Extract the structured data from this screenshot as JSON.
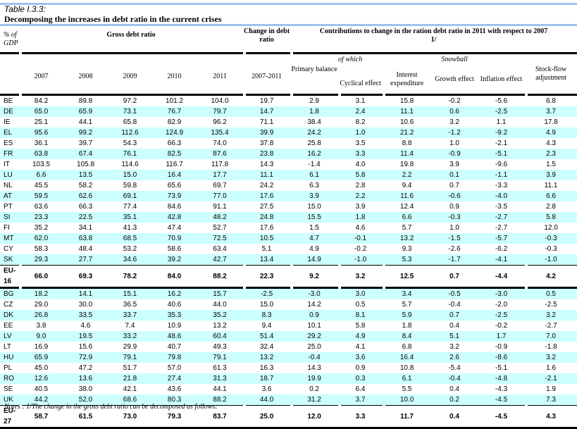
{
  "header": {
    "table_label": "Table I.3.3:",
    "title": "Decomposing the increases in debt ratio in the current crises",
    "unit": "% of GDP",
    "gross_debt_ratio": "Gross debt ratio",
    "change_in_debt_ratio": "Change in debt ratio",
    "contributions": "Contributions to change in the ration debt ratio in 2011 with respect to 2007 1/",
    "of_which": "of which",
    "snowball": "Snowball",
    "columns": [
      "2007",
      "2008",
      "2009",
      "2010",
      "2011",
      "2007-2011",
      "Primary balance",
      "Cyclical effect",
      "Interest expenditure",
      "Growth effect",
      "Inflation effect",
      "Stock-flow adjustment"
    ]
  },
  "colors": {
    "row_stripe": "#ccffff",
    "rule": "#9cc3f0"
  },
  "rows": [
    {
      "code": "BE",
      "v": [
        "84.2",
        "89.8",
        "97.2",
        "101.2",
        "104.0",
        "19.7",
        "2.9",
        "3.1",
        "15.8",
        "-0.2",
        "-5.6",
        "6.8"
      ]
    },
    {
      "code": "DE",
      "v": [
        "65.0",
        "65.9",
        "73.1",
        "76.7",
        "79.7",
        "14.7",
        "1.8",
        "2.4",
        "11.1",
        "0.6",
        "-2.5",
        "3.7"
      ]
    },
    {
      "code": "IE",
      "v": [
        "25.1",
        "44.1",
        "65.8",
        "82.9",
        "96.2",
        "71.1",
        "38.4",
        "8.2",
        "10.6",
        "3.2",
        "1.1",
        "17.8"
      ]
    },
    {
      "code": "EL",
      "v": [
        "95.6",
        "99.2",
        "112.6",
        "124.9",
        "135.4",
        "39.9",
        "24.2",
        "1.0",
        "21.2",
        "-1.2",
        "-9.2",
        "4.9"
      ]
    },
    {
      "code": "ES",
      "v": [
        "36.1",
        "39.7",
        "54.3",
        "66.3",
        "74.0",
        "37.8",
        "25.8",
        "3.5",
        "8.8",
        "1.0",
        "-2.1",
        "4.3"
      ]
    },
    {
      "code": "FR",
      "v": [
        "63.8",
        "67.4",
        "76.1",
        "82.5",
        "87.6",
        "23.8",
        "16.2",
        "3.3",
        "11.4",
        "-0.9",
        "-5.1",
        "2.3"
      ]
    },
    {
      "code": "IT",
      "v": [
        "103.5",
        "105.8",
        "114.6",
        "116.7",
        "117.8",
        "14.3",
        "-1.4",
        "4.0",
        "19.8",
        "3.9",
        "-9.6",
        "1.5"
      ]
    },
    {
      "code": "LU",
      "v": [
        "6.6",
        "13.5",
        "15.0",
        "16.4",
        "17.7",
        "11.1",
        "6.1",
        "5.8",
        "2.2",
        "0.1",
        "-1.1",
        "3.9"
      ]
    },
    {
      "code": "NL",
      "v": [
        "45.5",
        "58.2",
        "59.8",
        "65.6",
        "69.7",
        "24.2",
        "6.3",
        "2.8",
        "9.4",
        "0.7",
        "-3.3",
        "11.1"
      ]
    },
    {
      "code": "AT",
      "v": [
        "59.5",
        "62.6",
        "69.1",
        "73.9",
        "77.0",
        "17.6",
        "3.9",
        "2.2",
        "11.6",
        "-0.6",
        "-4.0",
        "6.6"
      ]
    },
    {
      "code": "PT",
      "v": [
        "63.6",
        "66.3",
        "77.4",
        "84.6",
        "91.1",
        "27.5",
        "15.0",
        "3.9",
        "12.4",
        "0.9",
        "-3.5",
        "2.8"
      ]
    },
    {
      "code": "SI",
      "v": [
        "23.3",
        "22.5",
        "35.1",
        "42.8",
        "48.2",
        "24.8",
        "15.5",
        "1.8",
        "6.6",
        "-0.3",
        "-2.7",
        "5.8"
      ]
    },
    {
      "code": "FI",
      "v": [
        "35.2",
        "34.1",
        "41.3",
        "47.4",
        "52.7",
        "17.6",
        "1.5",
        "4.6",
        "5.7",
        "1.0",
        "-2.7",
        "12.0"
      ]
    },
    {
      "code": "MT",
      "v": [
        "62.0",
        "63.8",
        "68.5",
        "70.9",
        "72.5",
        "10.5",
        "4.7",
        "-0.1",
        "13.2",
        "-1.5",
        "-5.7",
        "-0.3"
      ]
    },
    {
      "code": "CY",
      "v": [
        "58.3",
        "48.4",
        "53.2",
        "58.6",
        "63.4",
        "5.1",
        "4.9",
        "-0.2",
        "9.3",
        "-2.6",
        "-6.2",
        "-0.3"
      ]
    },
    {
      "code": "SK",
      "v": [
        "29.3",
        "27.7",
        "34.6",
        "39.2",
        "42.7",
        "13.4",
        "14.9",
        "-1.0",
        "5.3",
        "-1.7",
        "-4.1",
        "-1.0"
      ]
    },
    {
      "code": "EU-16",
      "total": true,
      "v": [
        "66.0",
        "69.3",
        "78.2",
        "84.0",
        "88.2",
        "22.3",
        "9.2",
        "3.2",
        "12.5",
        "0.7",
        "-4.4",
        "4.2"
      ]
    },
    {
      "code": "BG",
      "v": [
        "18.2",
        "14.1",
        "15.1",
        "16.2",
        "15.7",
        "-2.5",
        "-3.0",
        "3.0",
        "3.4",
        "-0.5",
        "-3.0",
        "0.5"
      ]
    },
    {
      "code": "CZ",
      "v": [
        "29.0",
        "30.0",
        "36.5",
        "40.6",
        "44.0",
        "15.0",
        "14.2",
        "0.5",
        "5.7",
        "-0.4",
        "-2.0",
        "-2.5"
      ]
    },
    {
      "code": "DK",
      "v": [
        "26.8",
        "33.5",
        "33.7",
        "35.3",
        "35.2",
        "8.3",
        "0.9",
        "8.1",
        "5.9",
        "0.7",
        "-2.5",
        "3.2"
      ]
    },
    {
      "code": "EE",
      "v": [
        "3.8",
        "4.6",
        "7.4",
        "10.9",
        "13.2",
        "9.4",
        "10.1",
        "5.8",
        "1.8",
        "0.4",
        "-0.2",
        "-2.7"
      ]
    },
    {
      "code": "LV",
      "v": [
        "9.0",
        "19.5",
        "33.2",
        "48.6",
        "60.4",
        "51.4",
        "29.2",
        "4.9",
        "8.4",
        "5.1",
        "1.7",
        "7.0"
      ]
    },
    {
      "code": "LT",
      "v": [
        "16.9",
        "15.6",
        "29.9",
        "40.7",
        "49.3",
        "32.4",
        "25.0",
        "4.1",
        "6.8",
        "3.2",
        "-0.9",
        "-1.8"
      ]
    },
    {
      "code": "HU",
      "v": [
        "65.9",
        "72.9",
        "79.1",
        "79.8",
        "79.1",
        "13.2",
        "-0.4",
        "3.6",
        "16.4",
        "2.6",
        "-8.6",
        "3.2"
      ]
    },
    {
      "code": "PL",
      "v": [
        "45.0",
        "47.2",
        "51.7",
        "57.0",
        "61.3",
        "16.3",
        "14.3",
        "0.9",
        "10.8",
        "-5.4",
        "-5.1",
        "1.6"
      ]
    },
    {
      "code": "RO",
      "v": [
        "12.6",
        "13.6",
        "21.8",
        "27.4",
        "31.3",
        "18.7",
        "19.9",
        "0.3",
        "6.1",
        "-0.4",
        "-4.8",
        "-2.1"
      ]
    },
    {
      "code": "SE",
      "v": [
        "40.5",
        "38.0",
        "42.1",
        "43.6",
        "44.1",
        "3.6",
        "0.2",
        "6.4",
        "5.5",
        "0.4",
        "-4.3",
        "1.9"
      ]
    },
    {
      "code": "UK",
      "v": [
        "44.2",
        "52.0",
        "68.6",
        "80.3",
        "88.2",
        "44.0",
        "31.2",
        "3.7",
        "10.0",
        "0.2",
        "-4.5",
        "7.3"
      ]
    },
    {
      "code": "EU-27",
      "total": true,
      "v": [
        "58.7",
        "61.5",
        "73.0",
        "79.3",
        "83.7",
        "25.0",
        "12.0",
        "3.3",
        "11.7",
        "0.4",
        "-4.5",
        "4.3"
      ]
    }
  ],
  "notes": "Notes :  1/The change in the gross debt ratio can be decomposed as follows:"
}
